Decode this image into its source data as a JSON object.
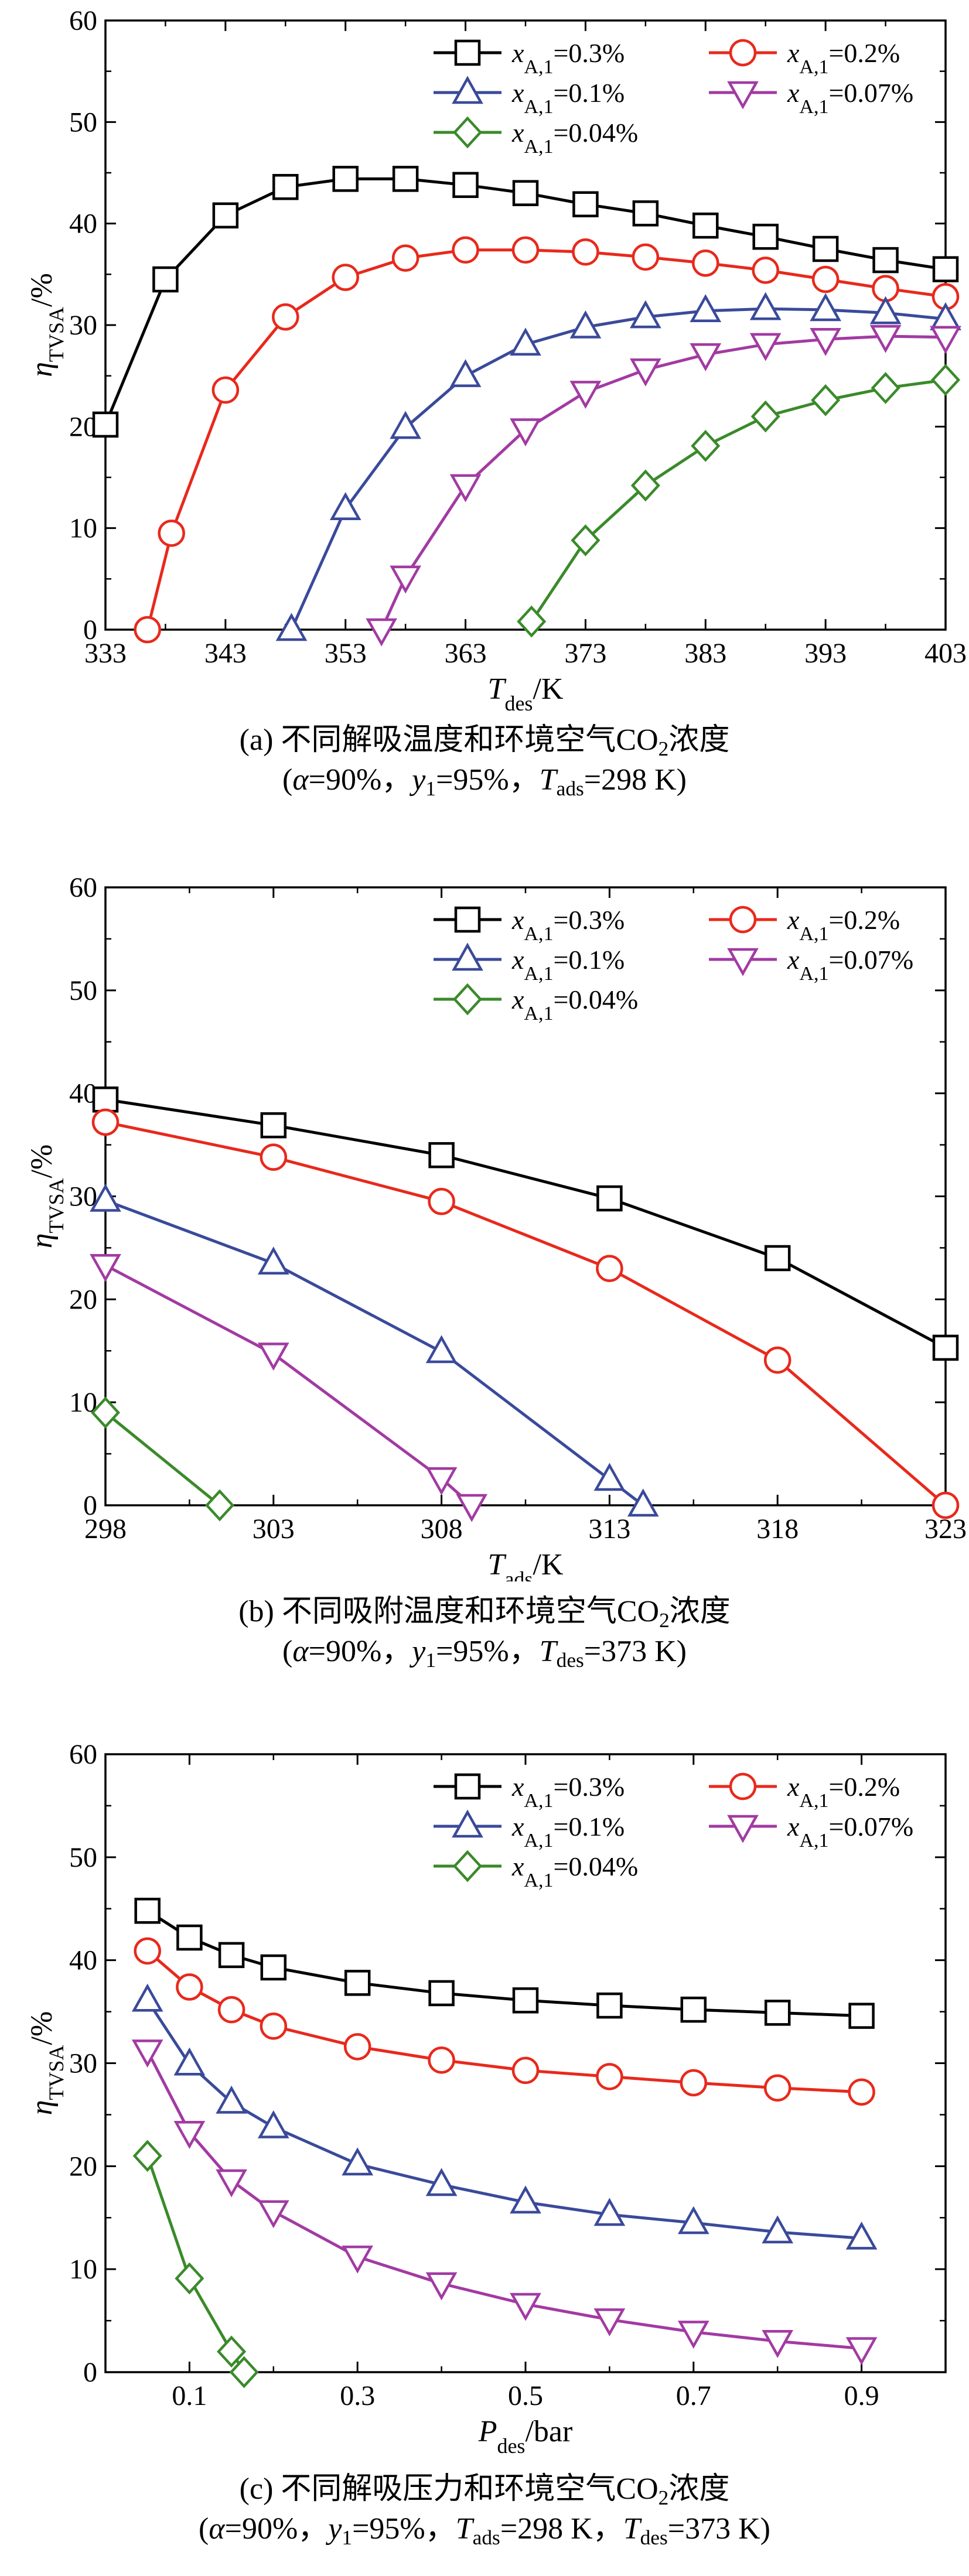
{
  "chart_data": [
    {
      "type": "line",
      "caption_pre": "(a) 不同解吸温度和环境空气CO",
      "caption_sub": "2",
      "caption_post": "浓度",
      "cond": [
        {
          "sym": "α",
          "sub": "",
          "val": "=90%，"
        },
        {
          "sym": "y",
          "sub": "1",
          "val": "=95%，"
        },
        {
          "sym": "T",
          "sub": "ads",
          "val": "=298 K"
        }
      ],
      "xlabel_sym": "T",
      "xlabel_sub": "des",
      "xlabel_unit": "/K",
      "ylabel_sym": "η",
      "ylabel_sub": "TVSA",
      "ylabel_unit": "/%",
      "xlim": [
        333,
        403
      ],
      "ylim": [
        0,
        60
      ],
      "xticks": [
        333,
        343,
        353,
        363,
        373,
        383,
        393,
        403
      ],
      "yticks": [
        0,
        10,
        20,
        30,
        40,
        50,
        60
      ],
      "series": [
        {
          "label_pre": "x",
          "label_sub": "A,1",
          "label_post": "=0.3%",
          "color": "#000000",
          "marker": "square",
          "x": [
            333,
            338,
            343,
            348,
            353,
            358,
            363,
            368,
            373,
            378,
            383,
            388,
            393,
            398,
            403
          ],
          "y": [
            20.2,
            34.5,
            40.8,
            43.6,
            44.4,
            44.4,
            43.8,
            43.0,
            41.9,
            41.0,
            39.8,
            38.7,
            37.5,
            36.4,
            35.5
          ]
        },
        {
          "label_pre": "x",
          "label_sub": "A,1",
          "label_post": "=0.2%",
          "color": "#e8291c",
          "marker": "circle",
          "x": [
            336.5,
            338.5,
            343,
            348,
            353,
            358,
            363,
            368,
            373,
            378,
            383,
            388,
            393,
            398,
            403
          ],
          "y": [
            0,
            9.5,
            23.6,
            30.8,
            34.7,
            36.6,
            37.4,
            37.4,
            37.2,
            36.7,
            36.1,
            35.4,
            34.5,
            33.6,
            32.8
          ]
        },
        {
          "label_pre": "x",
          "label_sub": "A,1",
          "label_post": "=0.1%",
          "color": "#3a4a9a",
          "marker": "triangle-up",
          "x": [
            348.5,
            353,
            358,
            363,
            368,
            373,
            378,
            383,
            388,
            393,
            398,
            403
          ],
          "y": [
            0,
            11.9,
            19.9,
            25.0,
            28.1,
            29.8,
            30.8,
            31.4,
            31.6,
            31.5,
            31.2,
            30.6
          ]
        },
        {
          "label_pre": "x",
          "label_sub": "A,1",
          "label_post": "=0.07%",
          "color": "#a23aa2",
          "marker": "triangle-down",
          "x": [
            356,
            358,
            363,
            368,
            373,
            378,
            383,
            388,
            393,
            398,
            403
          ],
          "y": [
            0,
            5.2,
            14.2,
            19.7,
            23.4,
            25.6,
            27.1,
            28.1,
            28.6,
            28.9,
            28.8
          ]
        },
        {
          "label_pre": "x",
          "label_sub": "A,1",
          "label_post": "=0.04%",
          "color": "#3a8a2a",
          "marker": "diamond",
          "x": [
            368.5,
            373,
            378,
            383,
            388,
            393,
            398,
            403
          ],
          "y": [
            0.8,
            8.8,
            14.2,
            18.1,
            21.0,
            22.6,
            23.8,
            24.6
          ]
        }
      ]
    },
    {
      "type": "line",
      "caption_pre": "(b) 不同吸附温度和环境空气CO",
      "caption_sub": "2",
      "caption_post": "浓度",
      "cond": [
        {
          "sym": "α",
          "sub": "",
          "val": "=90%，"
        },
        {
          "sym": "y",
          "sub": "1",
          "val": "=95%，"
        },
        {
          "sym": "T",
          "sub": "des",
          "val": "=373 K"
        }
      ],
      "xlabel_sym": "T",
      "xlabel_sub": "ads",
      "xlabel_unit": "/K",
      "ylabel_sym": "η",
      "ylabel_sub": "TVSA",
      "ylabel_unit": "/%",
      "xlim": [
        298,
        323
      ],
      "ylim": [
        0,
        60
      ],
      "xticks": [
        298,
        303,
        308,
        313,
        318,
        323
      ],
      "yticks": [
        0,
        10,
        20,
        30,
        40,
        50,
        60
      ],
      "series": [
        {
          "label_pre": "x",
          "label_sub": "A,1",
          "label_post": "=0.3%",
          "color": "#000000",
          "marker": "square",
          "x": [
            298,
            303,
            308,
            313,
            318,
            323
          ],
          "y": [
            39.4,
            36.9,
            34.0,
            29.8,
            24.0,
            15.3
          ]
        },
        {
          "label_pre": "x",
          "label_sub": "A,1",
          "label_post": "=0.2%",
          "color": "#e8291c",
          "marker": "circle",
          "x": [
            298,
            303,
            308,
            313,
            318,
            323
          ],
          "y": [
            37.2,
            33.8,
            29.5,
            23.0,
            14.1,
            0
          ]
        },
        {
          "label_pre": "x",
          "label_sub": "A,1",
          "label_post": "=0.1%",
          "color": "#3a4a9a",
          "marker": "triangle-up",
          "x": [
            298,
            303,
            308,
            313,
            314
          ],
          "y": [
            29.6,
            23.5,
            14.9,
            2.5,
            0
          ]
        },
        {
          "label_pre": "x",
          "label_sub": "A,1",
          "label_post": "=0.07%",
          "color": "#a23aa2",
          "marker": "triangle-down",
          "x": [
            298,
            303,
            308,
            308.9
          ],
          "y": [
            23.3,
            14.7,
            2.6,
            0
          ]
        },
        {
          "label_pre": "x",
          "label_sub": "A,1",
          "label_post": "=0.04%",
          "color": "#3a8a2a",
          "marker": "diamond",
          "x": [
            298,
            301.4
          ],
          "y": [
            9.0,
            0
          ]
        }
      ]
    },
    {
      "type": "line",
      "caption_pre": "(c) 不同解吸压力和环境空气CO",
      "caption_sub": "2",
      "caption_post": "浓度",
      "cond": [
        {
          "sym": "α",
          "sub": "",
          "val": "=90%，"
        },
        {
          "sym": "y",
          "sub": "1",
          "val": "=95%，"
        },
        {
          "sym": "T",
          "sub": "ads",
          "val": "=298 K，"
        },
        {
          "sym": "T",
          "sub": "des",
          "val": "=373 K)"
        }
      ],
      "xlabel_sym": "P",
      "xlabel_sub": "des",
      "xlabel_unit": "/bar",
      "ylabel_sym": "η",
      "ylabel_sub": "TVSA",
      "ylabel_unit": "/%",
      "xlim": [
        0,
        1.0
      ],
      "ylim": [
        0,
        60
      ],
      "xticks": [
        0.1,
        0.3,
        0.5,
        0.7,
        0.9
      ],
      "yticks": [
        0,
        10,
        20,
        30,
        40,
        50,
        60
      ],
      "series": [
        {
          "label_pre": "x",
          "label_sub": "A,1",
          "label_post": "=0.3%",
          "color": "#000000",
          "marker": "square",
          "x": [
            0.05,
            0.1,
            0.15,
            0.2,
            0.3,
            0.4,
            0.5,
            0.6,
            0.7,
            0.8,
            0.9
          ],
          "y": [
            44.8,
            42.2,
            40.5,
            39.3,
            37.8,
            36.8,
            36.1,
            35.6,
            35.2,
            34.9,
            34.6
          ]
        },
        {
          "label_pre": "x",
          "label_sub": "A,1",
          "label_post": "=0.2%",
          "color": "#e8291c",
          "marker": "circle",
          "x": [
            0.05,
            0.1,
            0.15,
            0.2,
            0.3,
            0.4,
            0.5,
            0.6,
            0.7,
            0.8,
            0.9
          ],
          "y": [
            40.9,
            37.4,
            35.2,
            33.6,
            31.6,
            30.3,
            29.3,
            28.7,
            28.1,
            27.6,
            27.2
          ]
        },
        {
          "label_pre": "x",
          "label_sub": "A,1",
          "label_post": "=0.1%",
          "color": "#3a4a9a",
          "marker": "triangle-up",
          "x": [
            0.05,
            0.1,
            0.15,
            0.2,
            0.3,
            0.4,
            0.5,
            0.6,
            0.7,
            0.8,
            0.9
          ],
          "y": [
            36.1,
            29.9,
            26.2,
            23.8,
            20.2,
            18.2,
            16.5,
            15.3,
            14.5,
            13.6,
            13.0
          ]
        },
        {
          "label_pre": "x",
          "label_sub": "A,1",
          "label_post": "=0.07%",
          "color": "#a23aa2",
          "marker": "triangle-down",
          "x": [
            0.05,
            0.1,
            0.15,
            0.2,
            0.3,
            0.4,
            0.5,
            0.6,
            0.7,
            0.8,
            0.9
          ],
          "y": [
            31.2,
            23.3,
            18.6,
            15.6,
            11.2,
            8.6,
            6.6,
            5.1,
            3.9,
            3.0,
            2.3
          ]
        },
        {
          "label_pre": "x",
          "label_sub": "A,1",
          "label_post": "=0.04%",
          "color": "#3a8a2a",
          "marker": "diamond",
          "x": [
            0.05,
            0.1,
            0.15,
            0.165
          ],
          "y": [
            21.0,
            9.1,
            2.0,
            0
          ]
        }
      ]
    }
  ],
  "paren_open": "(",
  "paren_close": ")"
}
